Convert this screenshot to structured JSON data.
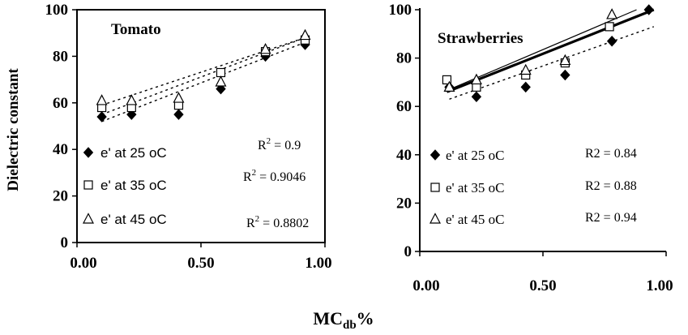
{
  "ylabel": "Dielectric constant",
  "xlabel": "MC",
  "xlabel_sub": "db",
  "xlabel_suffix": "%",
  "chart_data": [
    {
      "type": "scatter",
      "title": "Tomato",
      "xlim": [
        0,
        1
      ],
      "ylim": [
        0,
        100
      ],
      "xticks": [
        "0.00",
        "0.50",
        "1.00"
      ],
      "yticks": [
        "0",
        "20",
        "40",
        "60",
        "80",
        "100"
      ],
      "series": [
        {
          "name": "e' at 25 oC",
          "marker": "diamond",
          "x": [
            0.1,
            0.22,
            0.41,
            0.58,
            0.76,
            0.92
          ],
          "y": [
            54,
            55,
            55,
            66,
            80,
            85
          ],
          "fit": [
            [
              0.1,
              52
            ],
            [
              0.92,
              86
            ]
          ],
          "r2_label": "R",
          "r2_sup": "2",
          "r2_value": " = 0.9"
        },
        {
          "name": "e' at 35 oC",
          "marker": "square",
          "x": [
            0.1,
            0.22,
            0.41,
            0.58,
            0.76,
            0.92
          ],
          "y": [
            58,
            58,
            59,
            73,
            82,
            87
          ],
          "fit": [
            [
              0.1,
              55
            ],
            [
              0.92,
              88
            ]
          ],
          "r2_label": "R",
          "r2_sup": "2",
          "r2_value": " = 0.9046"
        },
        {
          "name": "e' at 45 oC",
          "marker": "triangle",
          "x": [
            0.1,
            0.22,
            0.41,
            0.58,
            0.76,
            0.92
          ],
          "y": [
            61,
            61,
            62,
            69,
            83,
            89
          ],
          "fit": [
            [
              0.1,
              59
            ],
            [
              0.92,
              88
            ]
          ],
          "r2_label": "R",
          "r2_sup": "2",
          "r2_value": " = 0.8802"
        }
      ]
    },
    {
      "type": "scatter",
      "title": "Strawberries",
      "xlim": [
        0,
        1
      ],
      "ylim": [
        0,
        100
      ],
      "xticks": [
        "0.00",
        "0.50",
        "1.00"
      ],
      "yticks": [
        "0",
        "20",
        "40",
        "60",
        "80",
        "100"
      ],
      "series": [
        {
          "name": "e' at 25 oC",
          "marker": "diamond",
          "x": [
            0.12,
            0.23,
            0.43,
            0.59,
            0.78,
            0.93
          ],
          "y": [
            68,
            64,
            68,
            73,
            87,
            100
          ],
          "fit": [
            [
              0.12,
              63
            ],
            [
              0.95,
              93
            ]
          ],
          "r2_label": "R2 = 0.84"
        },
        {
          "name": "e' at 35 oC",
          "marker": "square",
          "x": [
            0.11,
            0.23,
            0.43,
            0.59,
            0.77
          ],
          "y": [
            71,
            68,
            73,
            78,
            93
          ],
          "fit": [
            [
              0.11,
              66
            ],
            [
              0.95,
              100
            ]
          ],
          "r2_label": "R2 = 0.88"
        },
        {
          "name": "e' at 45 oC",
          "marker": "triangle",
          "x": [
            0.12,
            0.23,
            0.43,
            0.59,
            0.78
          ],
          "y": [
            68,
            71,
            75,
            79,
            98
          ],
          "fit": [
            [
              0.12,
              67
            ],
            [
              0.88,
              100
            ]
          ],
          "r2_label": "R2 = 0.94"
        }
      ]
    }
  ]
}
